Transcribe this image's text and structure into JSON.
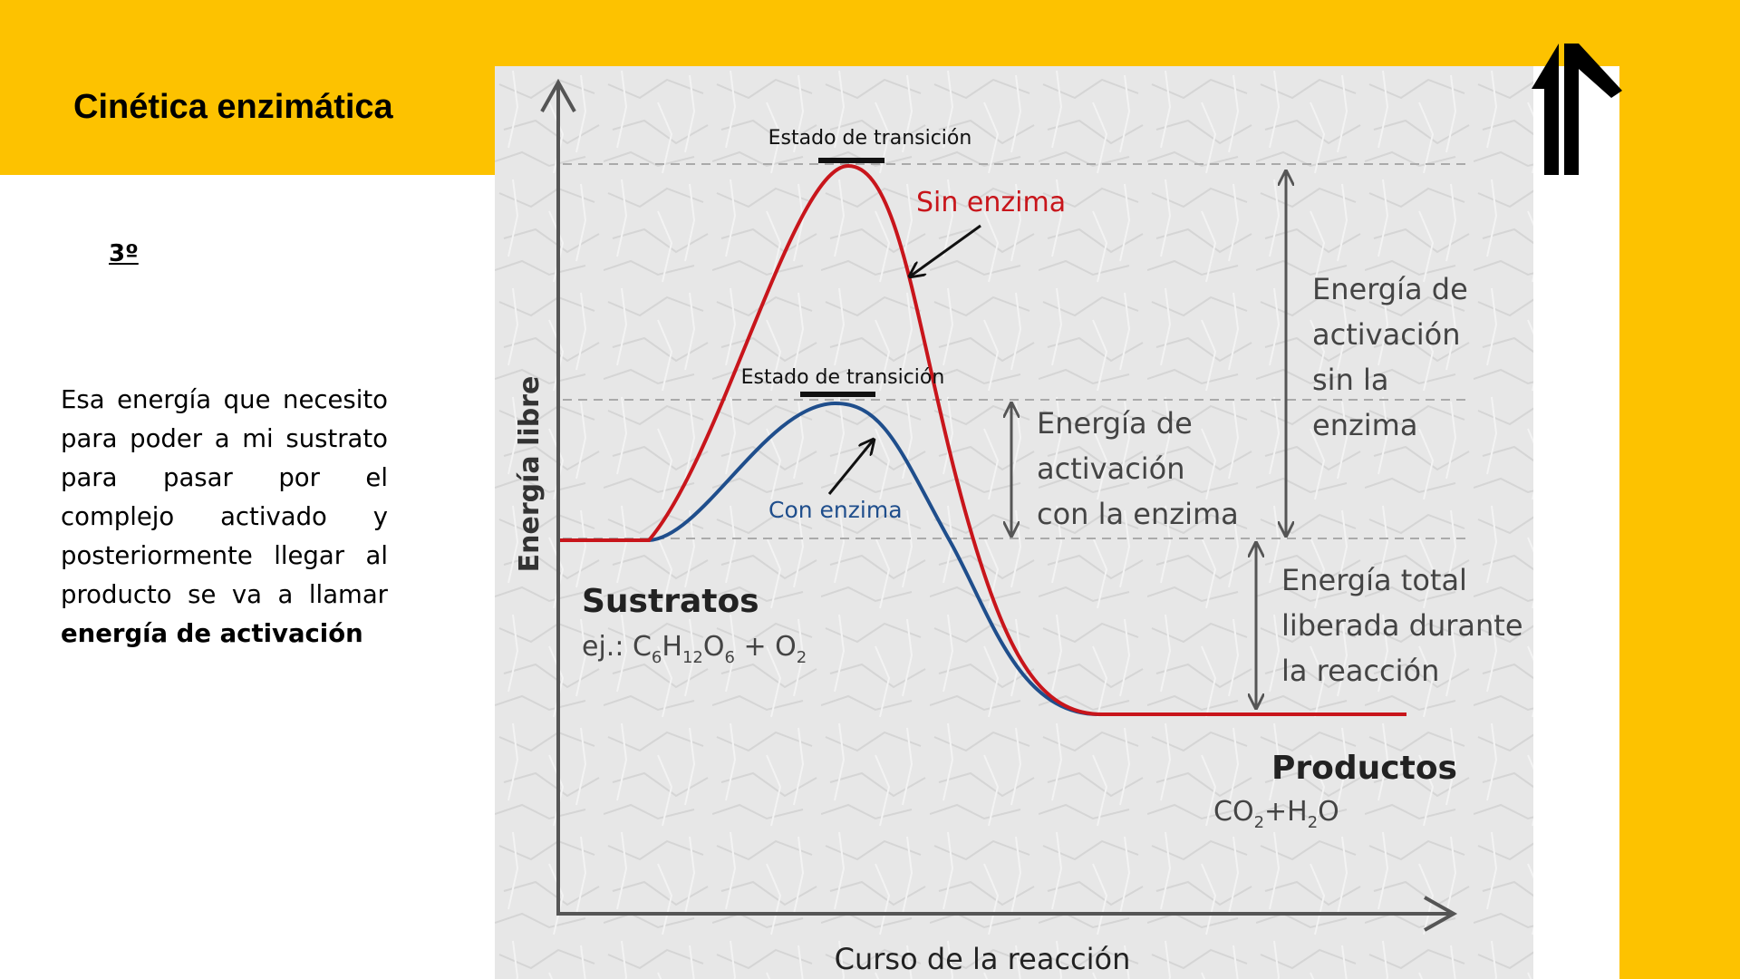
{
  "slide": {
    "title": "Cinética enzimática",
    "step": "3º",
    "paragraph_plain": "Esa energía que necesito para poder a mi sustrato para pasar por el complejo activado y posteriormente llegar al producto se va a llamar",
    "paragraph_bold": "energía de activación"
  },
  "colors": {
    "brand_yellow": "#FDC200",
    "curve_without_enzyme": "#C8151B",
    "curve_with_enzyme": "#1F4E8C",
    "axis": "#555555"
  },
  "icons": [
    "double-up-arrow-logo-icon"
  ],
  "diagram": {
    "y_axis_label": "Energía libre",
    "x_axis_label": "Curso de la reacción",
    "transition_state_top": "Estado de transición",
    "transition_state_bottom": "Estado de transición",
    "curve_without_enzyme": "Sin enzima",
    "curve_with_enzyme": "Con enzima",
    "ea_with_enzyme": [
      "Energía de",
      "activación",
      "con la enzima"
    ],
    "ea_without_enzyme": [
      "Energía de",
      "activación",
      "sin la",
      "enzima"
    ],
    "total_energy": [
      "Energía total",
      "liberada durante",
      "la reacción"
    ],
    "substrates_title": "Sustratos",
    "substrates_prefix": "ej.:",
    "products_title": "Productos"
  }
}
